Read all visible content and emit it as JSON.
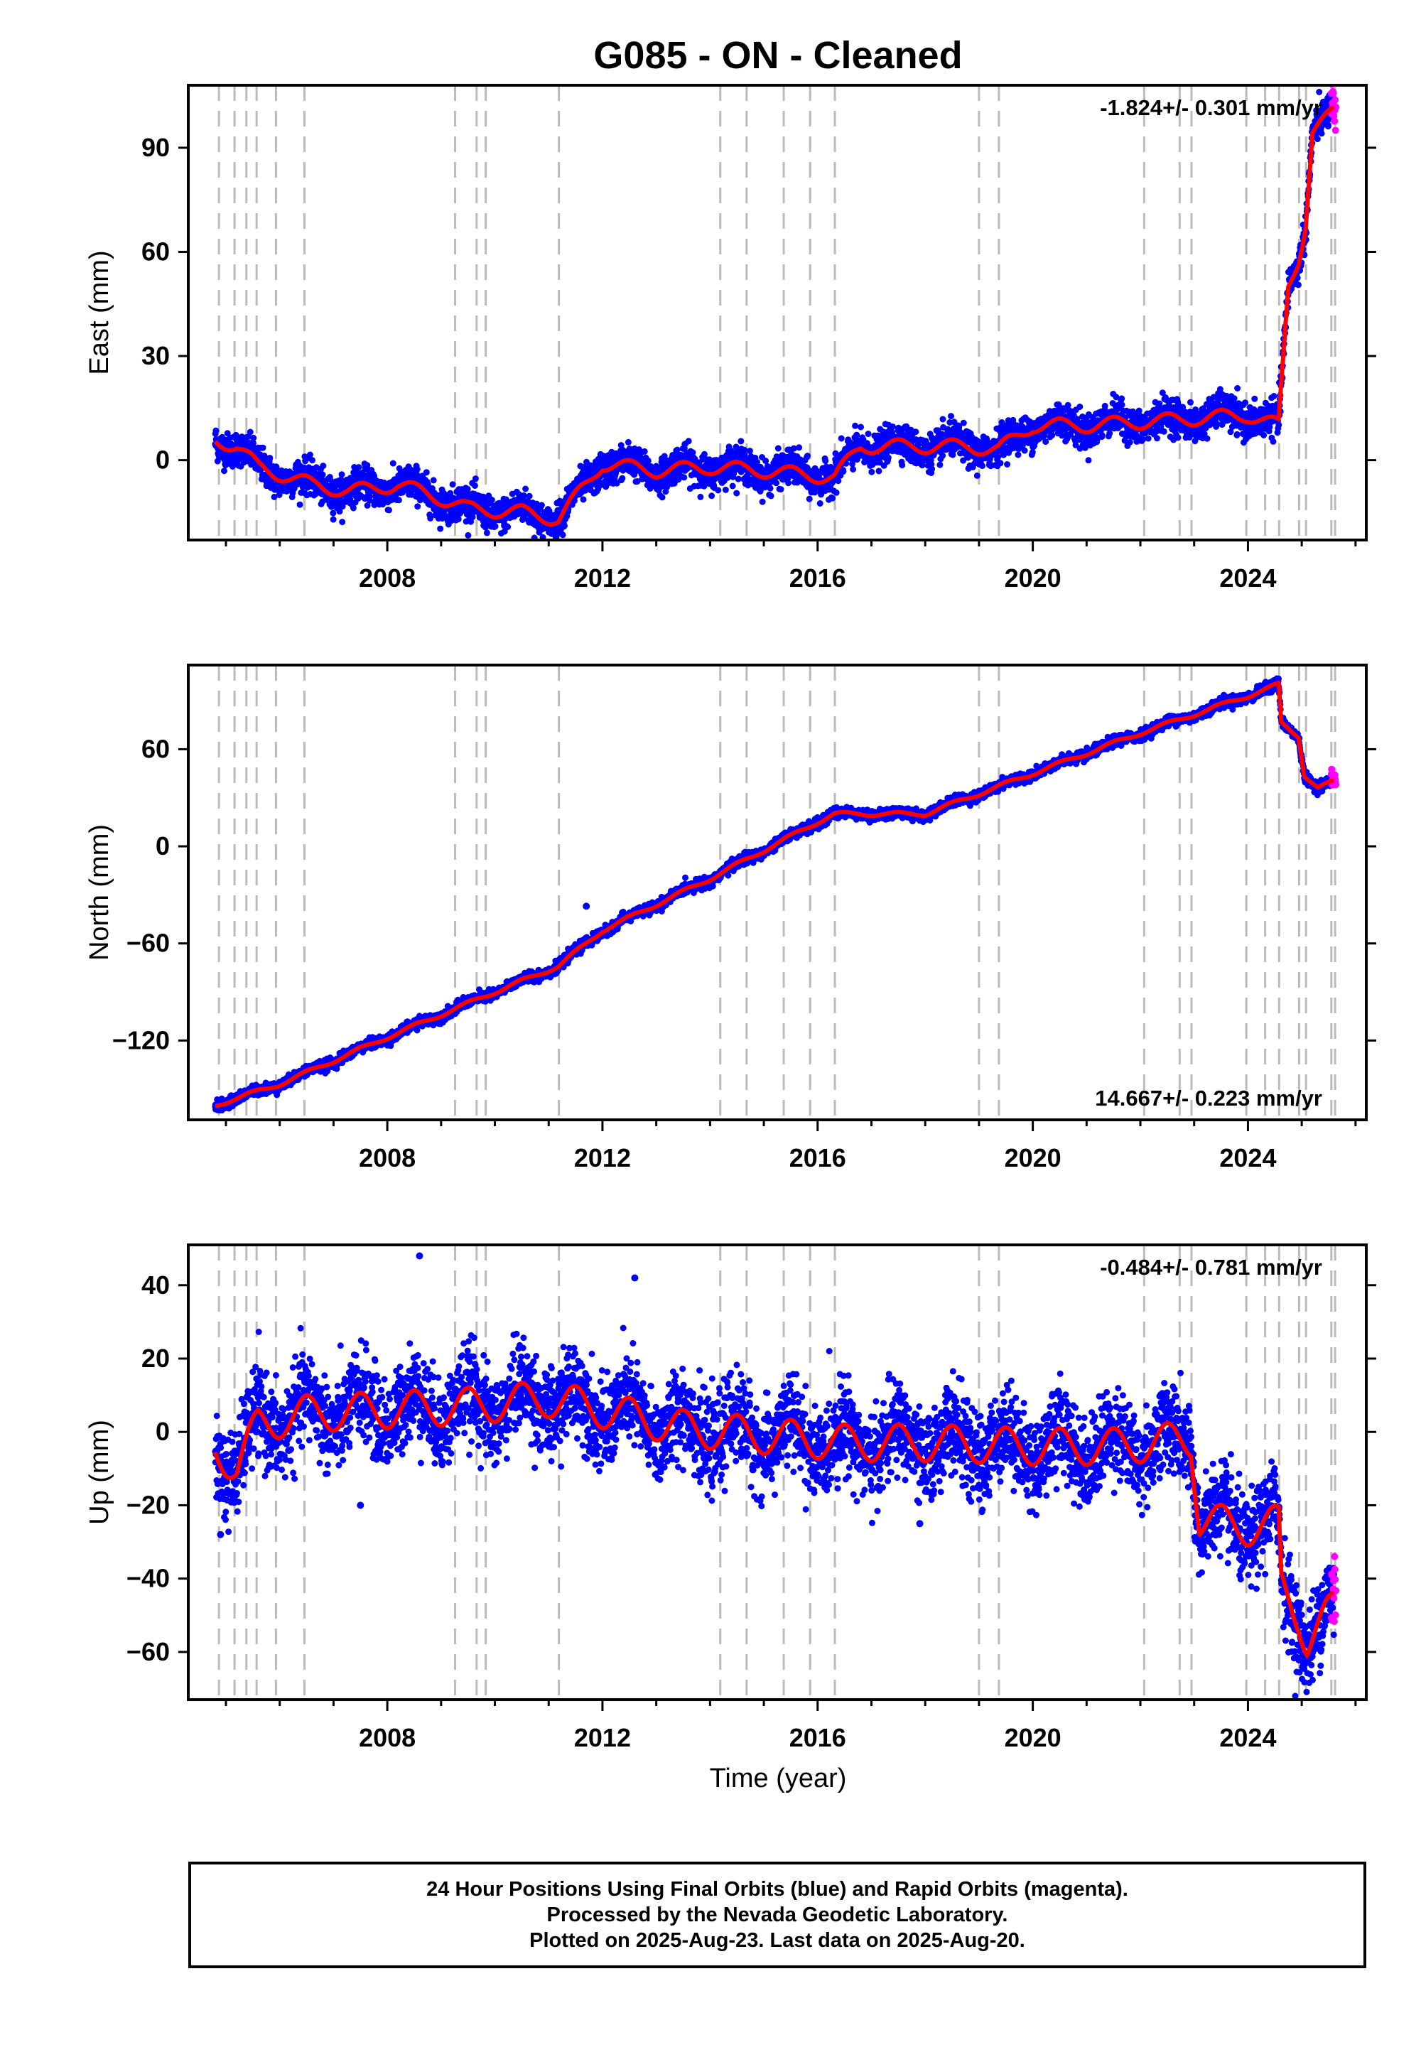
{
  "title": "G085  - ON - Cleaned",
  "xlabel": "Time (year)",
  "footer": {
    "line1": "24 Hour Positions Using Final Orbits (blue) and Rapid Orbits (magenta).",
    "line2": "Processed by the Nevada Geodetic Laboratory.",
    "line3": "Plotted on 2025-Aug-23. Last data on 2025-Aug-20."
  },
  "colors": {
    "final": "#0000ff",
    "rapid": "#ff00ff",
    "model": "#ff0000",
    "events": "#bbbbbb"
  },
  "chart_data": [
    {
      "type": "scatter",
      "component": "east",
      "ylabel": "East (mm)",
      "rate": "-1.824+/- 0.301 mm/yr",
      "rate_position": "top-right",
      "xlim": [
        2004.3,
        2026.2
      ],
      "ylim": [
        -23,
        108
      ],
      "yticks": [
        0,
        30,
        60,
        90
      ],
      "xticks": [
        2008,
        2012,
        2016,
        2020,
        2024
      ],
      "offsets": [
        [
          2011.19,
          16
        ],
        [
          2016.32,
          7
        ],
        [
          2019.37,
          6
        ],
        [
          2024.58,
          19
        ],
        [
          2024.62,
          13
        ],
        [
          2024.95,
          8
        ],
        [
          2025.08,
          25
        ]
      ],
      "model_knots": [
        [
          2004.8,
          6
        ],
        [
          2005.2,
          4
        ],
        [
          2005.6,
          -2
        ],
        [
          2006.2,
          -5
        ],
        [
          2006.6,
          -7
        ],
        [
          2007.3,
          -9
        ],
        [
          2008.2,
          -7
        ],
        [
          2009.0,
          -11
        ],
        [
          2009.5,
          -14
        ],
        [
          2010.5,
          -15
        ],
        [
          2011.18,
          -17
        ],
        [
          2012.0,
          -1
        ],
        [
          2013.0,
          -3
        ],
        [
          2014.0,
          -2
        ],
        [
          2015.0,
          -3
        ],
        [
          2016.31,
          -5
        ],
        [
          2016.8,
          4
        ],
        [
          2017.8,
          4
        ],
        [
          2018.8,
          4
        ],
        [
          2019.36,
          3
        ],
        [
          2020.0,
          10
        ],
        [
          2021.0,
          10
        ],
        [
          2022.0,
          11
        ],
        [
          2023.0,
          12
        ],
        [
          2024.0,
          13
        ],
        [
          2024.57,
          10
        ],
        [
          2024.75,
          50
        ],
        [
          2024.94,
          58
        ],
        [
          2025.07,
          68
        ],
        [
          2025.2,
          95
        ],
        [
          2025.6,
          100
        ]
      ],
      "seasonal_amp": 2,
      "noise": 2.4,
      "outlier_points": []
    },
    {
      "type": "scatter",
      "component": "north",
      "ylabel": "North (mm)",
      "rate": "14.667+/- 0.223 mm/yr",
      "rate_position": "bottom-right",
      "xlim": [
        2004.3,
        2026.2
      ],
      "ylim": [
        -169,
        112
      ],
      "yticks": [
        -120,
        -60,
        0,
        60
      ],
      "xticks": [
        2008,
        2012,
        2016,
        2020,
        2024
      ],
      "offsets": [
        [
          2016.32,
          -24
        ],
        [
          2024.58,
          -20
        ],
        [
          2024.95,
          -25
        ]
      ],
      "model_knots": [
        [
          2004.8,
          -160
        ],
        [
          2006.0,
          -147
        ],
        [
          2008.0,
          -118
        ],
        [
          2009.0,
          -104
        ],
        [
          2010.0,
          -90
        ],
        [
          2011.18,
          -74
        ],
        [
          2012.0,
          -52
        ],
        [
          2014.0,
          -20
        ],
        [
          2016.0,
          15
        ],
        [
          2016.31,
          20
        ],
        [
          2018.0,
          20
        ],
        [
          2020.0,
          45
        ],
        [
          2022.0,
          70
        ],
        [
          2024.0,
          93
        ],
        [
          2024.57,
          100
        ],
        [
          2024.62,
          76
        ],
        [
          2024.94,
          68
        ],
        [
          2025.05,
          44
        ],
        [
          2025.3,
          36
        ],
        [
          2025.6,
          40
        ]
      ],
      "seasonal_amp": 1.2,
      "noise": 1.6,
      "outlier_points": [
        [
          2011.7,
          -37
        ]
      ]
    },
    {
      "type": "scatter",
      "component": "up",
      "ylabel": "Up (mm)",
      "rate": "-0.484+/- 0.781 mm/yr",
      "rate_position": "top-right",
      "xlim": [
        2004.3,
        2026.2
      ],
      "ylim": [
        -73,
        51
      ],
      "yticks": [
        -60,
        -40,
        -20,
        0,
        20,
        40
      ],
      "xticks": [
        2008,
        2012,
        2016,
        2020,
        2024
      ],
      "offsets": [
        [
          2022.95,
          -15
        ],
        [
          2024.58,
          -18
        ],
        [
          2024.95,
          -12
        ]
      ],
      "model_knots": [
        [
          2004.8,
          -4
        ],
        [
          2005.2,
          -10
        ],
        [
          2005.6,
          2
        ],
        [
          2006.5,
          5
        ],
        [
          2008.0,
          6
        ],
        [
          2009.5,
          7
        ],
        [
          2011.0,
          9
        ],
        [
          2012.0,
          6
        ],
        [
          2013.5,
          1
        ],
        [
          2015.0,
          -1
        ],
        [
          2016.5,
          -3
        ],
        [
          2018.0,
          -3
        ],
        [
          2020.0,
          -4
        ],
        [
          2021.5,
          -4
        ],
        [
          2022.94,
          -2
        ],
        [
          2023.1,
          -24
        ],
        [
          2024.0,
          -26
        ],
        [
          2024.57,
          -25
        ],
        [
          2024.62,
          -42
        ],
        [
          2024.94,
          -50
        ],
        [
          2025.1,
          -57
        ],
        [
          2025.6,
          -48
        ]
      ],
      "seasonal_amp": 5,
      "noise": 6,
      "outlier_points": [
        [
          2008.6,
          48
        ],
        [
          2012.6,
          42
        ],
        [
          2007.5,
          -20
        ],
        [
          2004.9,
          -28
        ],
        [
          2017.9,
          -25
        ]
      ]
    }
  ],
  "event_lines": [
    2004.87,
    2005.16,
    2005.38,
    2005.57,
    2005.93,
    2006.46,
    2009.26,
    2009.66,
    2009.83,
    2011.19,
    2014.19,
    2014.68,
    2015.37,
    2015.86,
    2016.32,
    2019.0,
    2019.37,
    2022.07,
    2022.73,
    2022.95,
    2023.97,
    2024.32,
    2024.58,
    2024.95,
    2025.08,
    2025.55,
    2025.62
  ]
}
